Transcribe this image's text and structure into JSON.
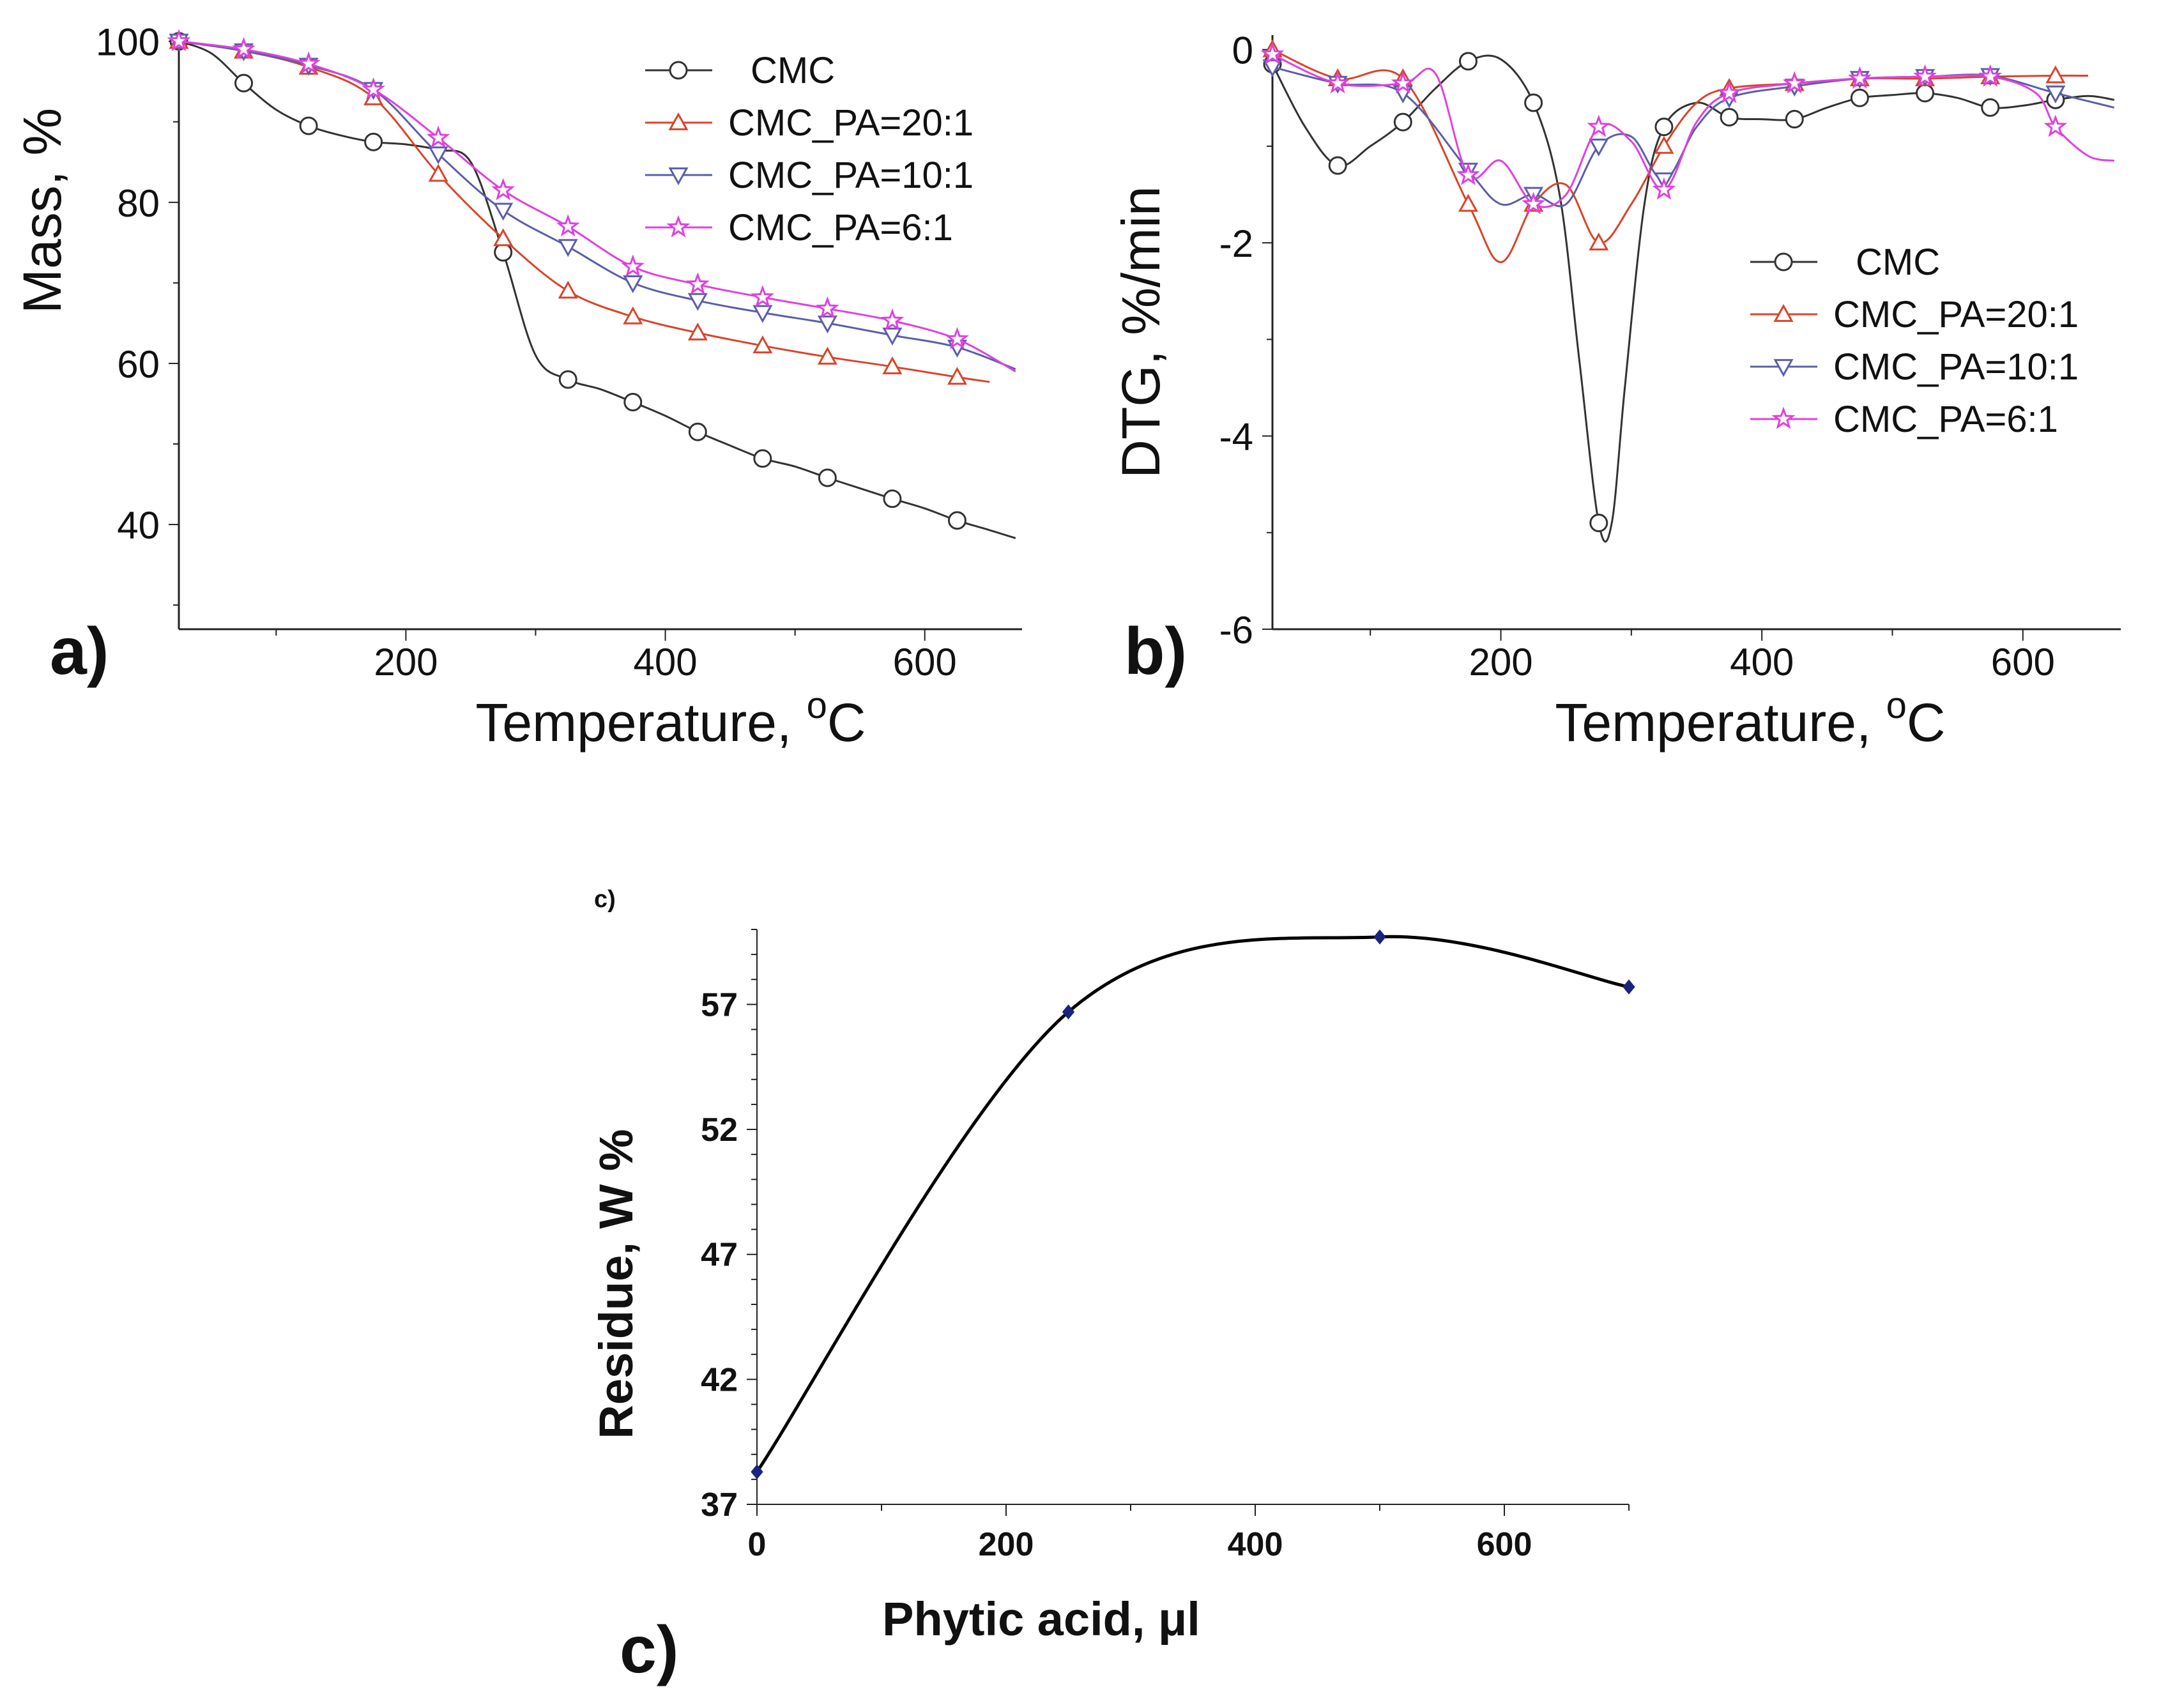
{
  "chart_data": [
    {
      "type": "line",
      "panel_label": "a)",
      "xlabel": "Temperature, ",
      "xlabel_sup": "o",
      "xlabel_suffix": "C",
      "ylabel": "Mass, %",
      "xlim": [
        25,
        675
      ],
      "ylim": [
        27,
        101
      ],
      "xticks": [
        200,
        400,
        600
      ],
      "yticks": [
        40,
        60,
        80,
        100
      ],
      "grid": false,
      "legend_position": "top-right",
      "series": [
        {
          "name": "CMC",
          "color": "#333333",
          "marker": "circle",
          "x": [
            25,
            50,
            75,
            100,
            125,
            150,
            175,
            200,
            225,
            250,
            275,
            300,
            325,
            350,
            375,
            400,
            425,
            450,
            475,
            500,
            525,
            550,
            575,
            600,
            625,
            650,
            670
          ],
          "y": [
            100,
            98.5,
            94.8,
            91.5,
            89.5,
            88.3,
            87.5,
            87.2,
            86.5,
            85,
            73.8,
            61,
            58,
            56.8,
            55.2,
            53.5,
            51.5,
            49.8,
            48.2,
            47.2,
            45.8,
            44.5,
            43.2,
            42,
            40.5,
            39.3,
            38.3
          ],
          "markers_x": [
            25,
            75,
            125,
            175,
            275,
            325,
            375,
            425,
            475,
            525,
            575,
            625
          ],
          "markers_y": [
            100,
            94.8,
            89.5,
            87.5,
            73.8,
            58,
            55.2,
            51.5,
            48.2,
            45.8,
            43.2,
            40.5
          ]
        },
        {
          "name": "CMC_PA=20:1",
          "color": "#d9442a",
          "marker": "triangle-up",
          "x": [
            25,
            75,
            125,
            175,
            225,
            275,
            325,
            375,
            425,
            475,
            525,
            575,
            625,
            650
          ],
          "y": [
            100,
            98.8,
            96.8,
            93,
            83.5,
            75.5,
            69,
            65.8,
            63.8,
            62.2,
            60.8,
            59.6,
            58.3,
            57.7
          ],
          "markers_x": [
            25,
            75,
            125,
            175,
            225,
            275,
            325,
            375,
            425,
            475,
            525,
            575,
            625
          ],
          "markers_y": [
            100,
            98.8,
            96.8,
            93,
            83.5,
            75.5,
            69,
            65.8,
            63.8,
            62.2,
            60.8,
            59.6,
            58.3
          ]
        },
        {
          "name": "CMC_PA=10:1",
          "color": "#5b5fa8",
          "marker": "triangle-down",
          "x": [
            25,
            75,
            125,
            175,
            225,
            275,
            325,
            375,
            425,
            475,
            525,
            575,
            625,
            670
          ],
          "y": [
            100,
            98.8,
            97,
            94,
            86,
            79,
            74.5,
            70,
            67.8,
            66.3,
            65,
            63.5,
            62,
            59.3
          ],
          "markers_x": [
            25,
            75,
            125,
            175,
            225,
            275,
            325,
            375,
            425,
            475,
            525,
            575,
            625
          ],
          "markers_y": [
            100,
            98.8,
            97,
            94,
            86,
            79,
            74.5,
            70,
            67.8,
            66.3,
            65,
            63.5,
            62
          ]
        },
        {
          "name": "CMC_PA=6:1",
          "color": "#e040e0",
          "marker": "star",
          "x": [
            25,
            75,
            125,
            175,
            225,
            275,
            325,
            375,
            425,
            475,
            525,
            575,
            625,
            670
          ],
          "y": [
            100,
            99,
            97.2,
            94,
            88,
            81.5,
            77,
            72,
            69.8,
            68.2,
            66.8,
            65.3,
            63,
            59
          ],
          "markers_x": [
            25,
            75,
            125,
            175,
            225,
            275,
            325,
            375,
            425,
            475,
            525,
            575,
            625
          ],
          "markers_y": [
            100,
            99,
            97.2,
            94,
            88,
            81.5,
            77,
            72,
            69.8,
            68.2,
            66.8,
            65.3,
            63
          ]
        }
      ]
    },
    {
      "type": "line",
      "panel_label": "b)",
      "xlabel": "Temperature, ",
      "xlabel_sup": "o",
      "xlabel_suffix": "C",
      "ylabel": "DTG, %/min",
      "xlim": [
        25,
        675
      ],
      "ylim": [
        -6,
        0.15
      ],
      "xticks": [
        200,
        400,
        600
      ],
      "yticks": [
        -6,
        -4,
        -2,
        0
      ],
      "grid": false,
      "legend_position": "middle-right",
      "series": [
        {
          "name": "CMC",
          "color": "#333333",
          "marker": "circle",
          "x": [
            25,
            50,
            75,
            100,
            125,
            150,
            175,
            200,
            225,
            245,
            260,
            275,
            285,
            295,
            310,
            325,
            350,
            375,
            400,
            425,
            450,
            475,
            500,
            525,
            550,
            575,
            600,
            625,
            650,
            670
          ],
          "y": [
            -0.15,
            -0.8,
            -1.2,
            -1.0,
            -0.75,
            -0.4,
            -0.12,
            -0.1,
            -0.55,
            -1.5,
            -3.2,
            -4.9,
            -4.9,
            -3.5,
            -1.6,
            -0.8,
            -0.55,
            -0.7,
            -0.72,
            -0.72,
            -0.6,
            -0.5,
            -0.47,
            -0.45,
            -0.5,
            -0.6,
            -0.58,
            -0.52,
            -0.48,
            -0.52
          ],
          "markers_x": [
            25,
            75,
            125,
            175,
            225,
            275,
            325,
            375,
            425,
            475,
            525,
            575,
            625
          ],
          "markers_y": [
            -0.15,
            -1.2,
            -0.75,
            -0.12,
            -0.55,
            -4.9,
            -0.8,
            -0.7,
            -0.72,
            -0.5,
            -0.45,
            -0.6,
            -0.52
          ]
        },
        {
          "name": "CMC_PA=20:1",
          "color": "#d9442a",
          "marker": "triangle-up",
          "x": [
            25,
            75,
            125,
            175,
            200,
            225,
            250,
            275,
            300,
            325,
            350,
            375,
            425,
            475,
            525,
            575,
            625,
            650
          ],
          "y": [
            0,
            -0.3,
            -0.3,
            -1.6,
            -2.2,
            -1.6,
            -1.4,
            -2.0,
            -1.6,
            -1.0,
            -0.55,
            -0.4,
            -0.35,
            -0.3,
            -0.3,
            -0.28,
            -0.27,
            -0.27
          ],
          "markers_x": [
            25,
            75,
            125,
            175,
            225,
            275,
            325,
            375,
            425,
            475,
            525,
            575,
            625
          ],
          "markers_y": [
            0,
            -0.3,
            -0.3,
            -1.6,
            -1.6,
            -2.0,
            -1.0,
            -0.4,
            -0.35,
            -0.3,
            -0.3,
            -0.28,
            -0.27
          ]
        },
        {
          "name": "CMC_PA=10:1",
          "color": "#5b5fa8",
          "marker": "triangle-down",
          "x": [
            25,
            75,
            125,
            175,
            200,
            225,
            250,
            275,
            300,
            325,
            350,
            375,
            425,
            475,
            525,
            575,
            625,
            670
          ],
          "y": [
            -0.18,
            -0.35,
            -0.45,
            -1.25,
            -1.6,
            -1.5,
            -1.6,
            -1.0,
            -0.9,
            -1.35,
            -0.8,
            -0.5,
            -0.38,
            -0.3,
            -0.28,
            -0.27,
            -0.45,
            -0.6
          ],
          "markers_x": [
            25,
            75,
            125,
            175,
            225,
            275,
            325,
            375,
            425,
            475,
            525,
            575,
            625
          ],
          "markers_y": [
            -0.18,
            -0.35,
            -0.45,
            -1.25,
            -1.5,
            -1.0,
            -1.35,
            -0.5,
            -0.38,
            -0.3,
            -0.28,
            -0.27,
            -0.45
          ]
        },
        {
          "name": "CMC_PA=6:1",
          "color": "#e040e0",
          "marker": "star",
          "x": [
            25,
            75,
            125,
            150,
            175,
            200,
            225,
            250,
            275,
            300,
            325,
            350,
            375,
            425,
            475,
            525,
            575,
            610,
            625,
            650,
            670
          ],
          "y": [
            -0.05,
            -0.35,
            -0.35,
            -0.25,
            -1.3,
            -1.15,
            -1.6,
            -1.5,
            -0.8,
            -0.95,
            -1.45,
            -0.75,
            -0.45,
            -0.35,
            -0.3,
            -0.28,
            -0.28,
            -0.45,
            -0.8,
            -1.1,
            -1.15
          ],
          "markers_x": [
            25,
            75,
            125,
            175,
            225,
            275,
            325,
            375,
            425,
            475,
            525,
            575,
            625
          ],
          "markers_y": [
            -0.05,
            -0.35,
            -0.35,
            -1.3,
            -1.6,
            -0.8,
            -1.45,
            -0.45,
            -0.35,
            -0.3,
            -0.28,
            -0.28,
            -0.8
          ]
        }
      ]
    },
    {
      "type": "line",
      "panel_label": "c)",
      "corner_label": "c)",
      "xlabel": "Phytic acid, μl",
      "ylabel": "Residue, W %",
      "xlim": [
        0,
        700
      ],
      "ylim": [
        37,
        60
      ],
      "xticks": [
        0,
        200,
        400,
        600
      ],
      "yticks": [
        37,
        42,
        47,
        52,
        57
      ],
      "grid": false,
      "series": [
        {
          "name": "Residue",
          "color": "#000000",
          "marker": "diamond",
          "x": [
            0,
            250,
            500,
            700
          ],
          "y": [
            38.3,
            56.7,
            59.7,
            57.7
          ]
        }
      ]
    }
  ]
}
